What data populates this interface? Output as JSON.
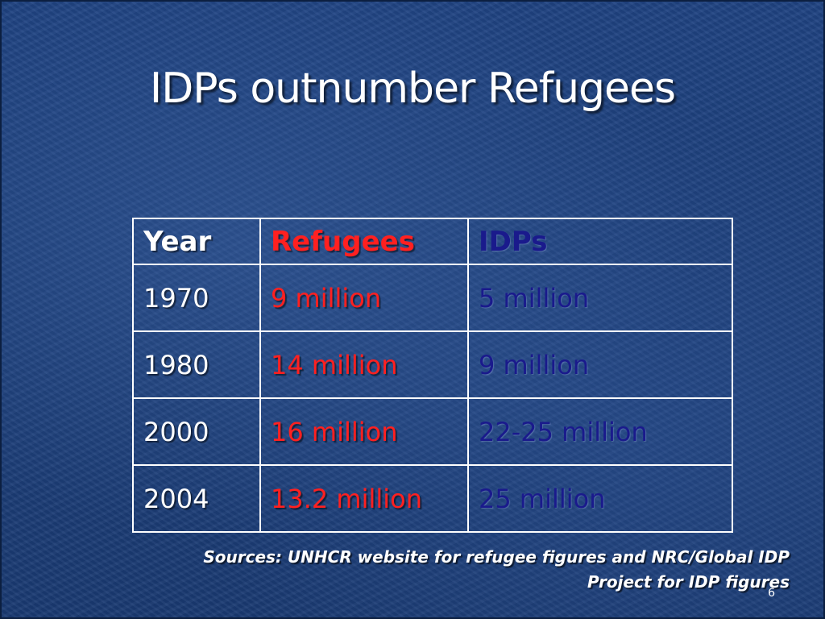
{
  "slide": {
    "title": "IDPs outnumber Refugees",
    "page_number": "6"
  },
  "table": {
    "headers": {
      "year": "Year",
      "refugees": "Refugees",
      "idps": "IDPs"
    },
    "rows": [
      {
        "year": "1970",
        "refugees": "9 million",
        "idps": "5 million"
      },
      {
        "year": "1980",
        "refugees": "14 million",
        "idps": "9 million"
      },
      {
        "year": "2000",
        "refugees": "16 million",
        "idps": "22-25 million"
      },
      {
        "year": "2004",
        "refugees": "13.2 million",
        "idps": "25 million"
      }
    ]
  },
  "sources": {
    "line1": "Sources: UNHCR website for refugee figures and NRC/Global IDP",
    "line2": "Project for IDP figures"
  },
  "colors": {
    "background": "#1d3f78",
    "title_text": "#ffffff",
    "year_text": "#ffffff",
    "refugees_text": "#ff2020",
    "idps_text": "#1a1a8c",
    "table_border": "#ffffff"
  }
}
